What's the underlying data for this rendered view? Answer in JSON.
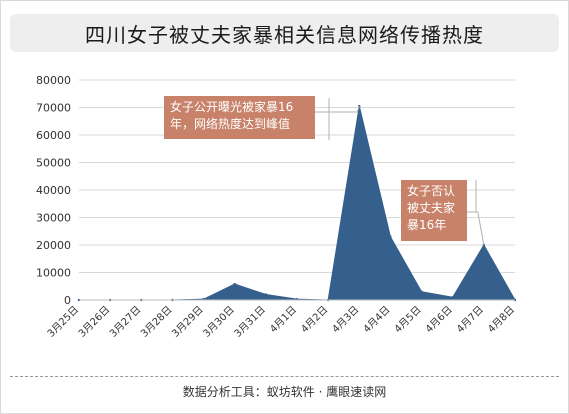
{
  "title": "四川女子被丈夫家暴相关信息网络传播热度",
  "footer": "数据分析工具：蚁坊软件 · 鹰眼速读网",
  "annotations": [
    {
      "text": "女子公开曝光被家暴16年，网络热度达到峰值",
      "date": "4月3日"
    },
    {
      "text": "女子否认被丈夫家暴16年",
      "date": "4月7日"
    }
  ],
  "chart_data": {
    "type": "area",
    "title": "四川女子被丈夫家暴相关信息网络传播热度",
    "xlabel": "",
    "ylabel": "",
    "categories": [
      "3月25日",
      "3月26日",
      "3月27日",
      "3月28日",
      "3月29日",
      "3月30日",
      "3月31日",
      "4月1日",
      "4月2日",
      "4月3日",
      "4月4日",
      "4月5日",
      "4月6日",
      "4月7日",
      "4月8日"
    ],
    "values": [
      0,
      0,
      0,
      0,
      300,
      5800,
      2000,
      300,
      0,
      70500,
      23000,
      3000,
      1000,
      20000,
      0
    ],
    "ylim": [
      0,
      80000
    ],
    "yticks": [
      0,
      10000,
      20000,
      30000,
      40000,
      50000,
      60000,
      70000,
      80000
    ],
    "grid": true,
    "legend": "none",
    "fill_color": "#355f8d",
    "grid_color": "#d9d9d9"
  }
}
